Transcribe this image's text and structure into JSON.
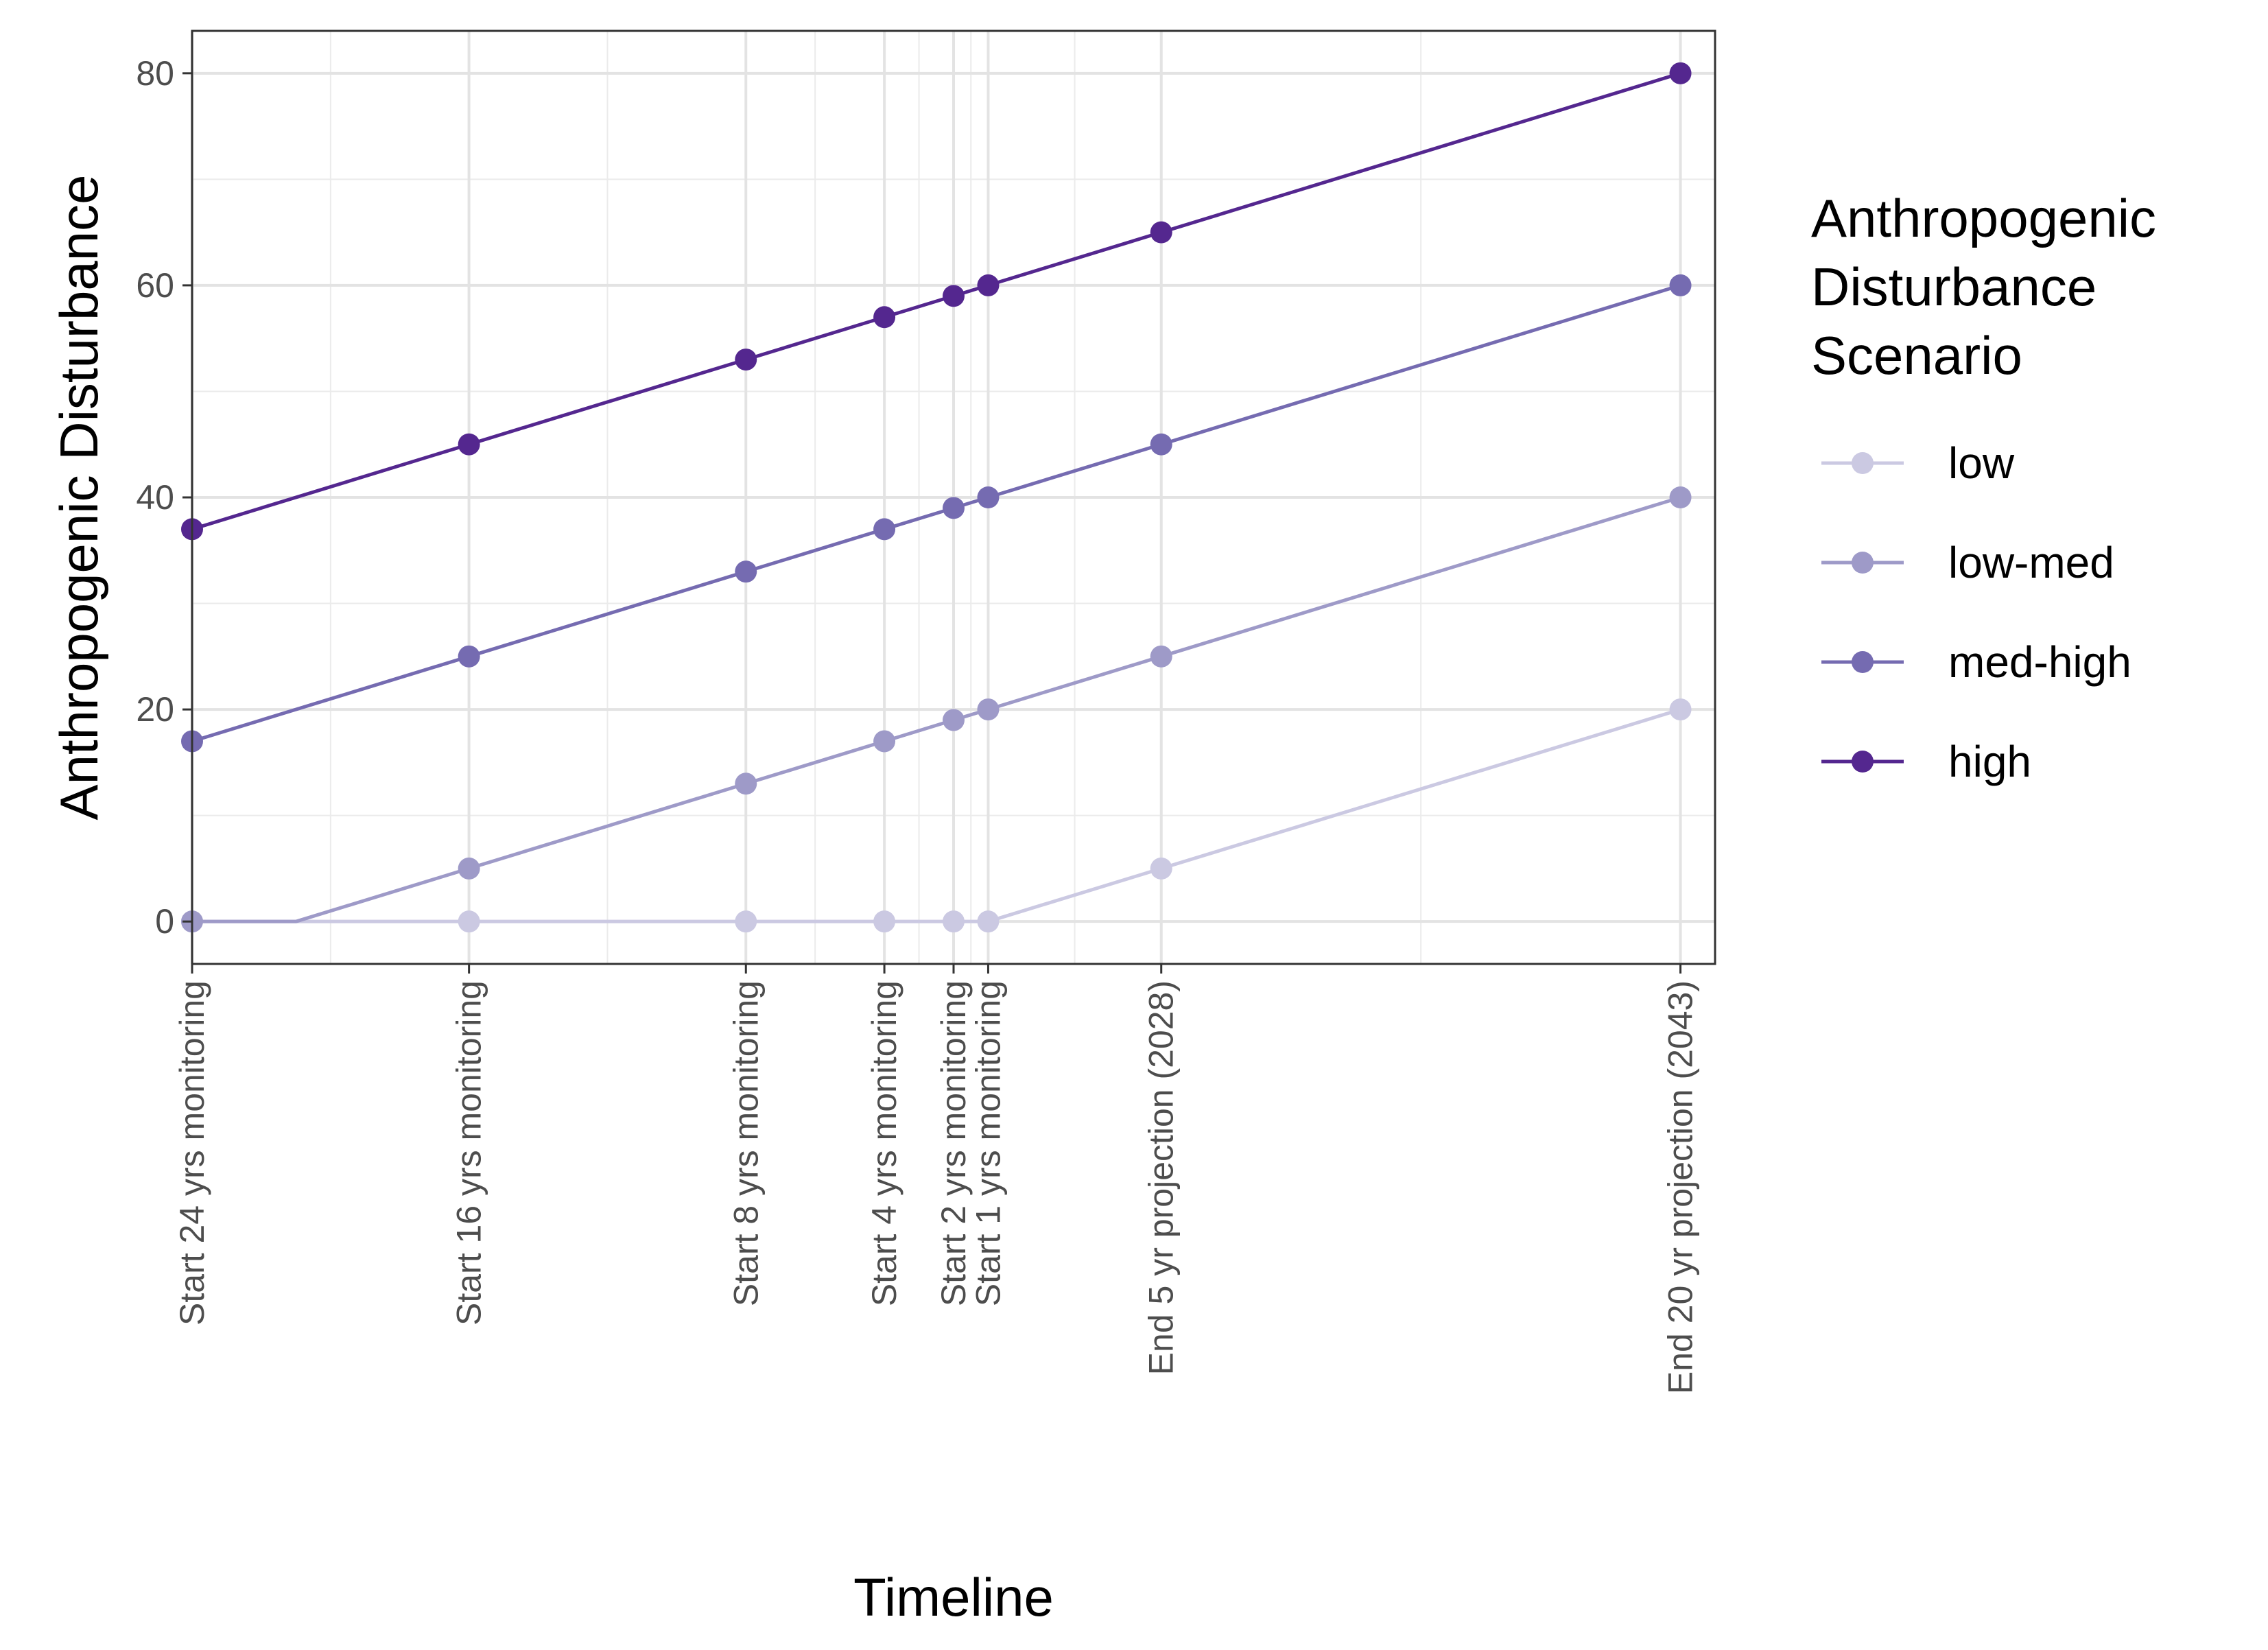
{
  "chart_data": {
    "type": "line",
    "title": "",
    "xlabel": "Timeline",
    "ylabel": "Anthropogenic Disturbance",
    "ylim": [
      -4,
      84
    ],
    "yticks": [
      0,
      20,
      40,
      60,
      80
    ],
    "y_minor_ticks": [
      10,
      30,
      50,
      70
    ],
    "x_axis_years": [
      -24,
      20
    ],
    "x_breaks": [
      {
        "label": "Start 24 yrs monitoring",
        "year": -24
      },
      {
        "label": "Start 16 yrs monitoring",
        "year": -16
      },
      {
        "label": "Start 8 yrs monitoring",
        "year": -8
      },
      {
        "label": "Start 4 yrs monitoring",
        "year": -4
      },
      {
        "label": "Start 2 yrs monitoring",
        "year": -2
      },
      {
        "label": "Start 1 yrs monitoring",
        "year": -1
      },
      {
        "label": "End 5 yr projection (2028)",
        "year": 4
      },
      {
        "label": "End 20 yr projection (2043)",
        "year": 19
      }
    ],
    "x_minor_years": [
      -20,
      -12,
      -6,
      -3,
      -1.5,
      1.5,
      11.5
    ],
    "grid": true,
    "legend": {
      "title": "Anthropogenic Disturbance Scenario",
      "title_lines": [
        "Anthropogenic",
        "Disturbance",
        "Scenario"
      ],
      "position": "right"
    },
    "series": [
      {
        "name": "low",
        "color": "#cbc9e2",
        "line_x": [
          -24,
          -16,
          -8,
          -4,
          -2,
          -1,
          4,
          19
        ],
        "line_y": [
          0,
          0,
          0,
          0,
          0,
          0,
          5,
          20
        ],
        "points_x": [
          -24,
          -16,
          -8,
          -4,
          -2,
          -1,
          4,
          19
        ],
        "points_y": [
          0,
          0,
          0,
          0,
          0,
          0,
          5,
          20
        ]
      },
      {
        "name": "low-med",
        "color": "#9e9ac8",
        "line_x": [
          -24,
          -21,
          -16,
          -8,
          -4,
          -2,
          -1,
          4,
          19
        ],
        "line_y": [
          0,
          0,
          5,
          13,
          17,
          19,
          20,
          25,
          40
        ],
        "points_x": [
          -24,
          -16,
          -8,
          -4,
          -2,
          -1,
          4,
          19
        ],
        "points_y": [
          0,
          5,
          13,
          17,
          19,
          20,
          25,
          40
        ]
      },
      {
        "name": "med-high",
        "color": "#756bb1",
        "line_x": [
          -24,
          -16,
          -8,
          -4,
          -2,
          -1,
          4,
          19
        ],
        "line_y": [
          17,
          25,
          33,
          37,
          39,
          40,
          45,
          60
        ],
        "points_x": [
          -24,
          -16,
          -8,
          -4,
          -2,
          -1,
          4,
          19
        ],
        "points_y": [
          17,
          25,
          33,
          37,
          39,
          40,
          45,
          60
        ]
      },
      {
        "name": "high",
        "color": "#54278f",
        "line_x": [
          -24,
          -16,
          -8,
          -4,
          -2,
          -1,
          4,
          19
        ],
        "line_y": [
          37,
          45,
          53,
          57,
          59,
          60,
          65,
          80
        ],
        "points_x": [
          -24,
          -16,
          -8,
          -4,
          -2,
          -1,
          4,
          19
        ],
        "points_y": [
          37,
          45,
          53,
          57,
          59,
          60,
          65,
          80
        ]
      }
    ]
  }
}
